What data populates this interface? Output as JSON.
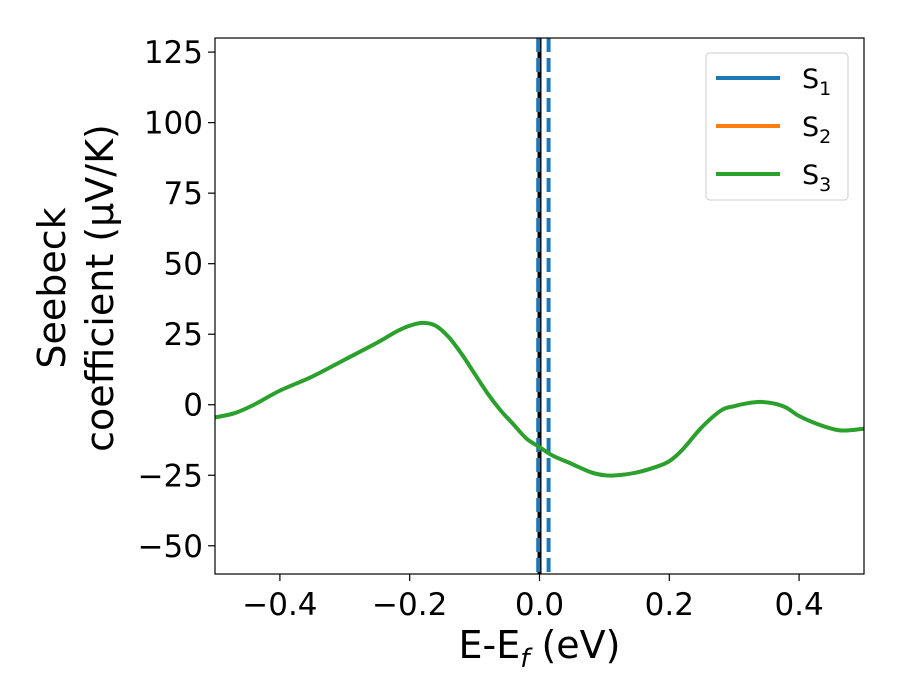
{
  "chart_data": {
    "type": "line",
    "xlabel": "E-E",
    "xlabel_sub": "f",
    "xlabel_unit": " (eV)",
    "ylabel_line1": "Seebeck",
    "ylabel_line2": "coefficient  (μV/K)",
    "xlim": [
      -0.5,
      0.5
    ],
    "ylim": [
      -60,
      130
    ],
    "xticks": [
      -0.4,
      -0.2,
      0.0,
      0.2,
      0.4
    ],
    "xtick_labels": [
      "−0.4",
      "−0.2",
      "0.0",
      "0.2",
      "0.4"
    ],
    "yticks": [
      -50,
      -25,
      0,
      25,
      50,
      75,
      100,
      125
    ],
    "ytick_labels": [
      "−50",
      "−25",
      "0",
      "25",
      "50",
      "75",
      "100",
      "125"
    ],
    "grid": false,
    "legend_position": "top-right",
    "legend": [
      {
        "label": "S",
        "sub": "1",
        "color": "#1f77b4"
      },
      {
        "label": "S",
        "sub": "2",
        "color": "#ff7f0e"
      },
      {
        "label": "S",
        "sub": "3",
        "color": "#2ca02c"
      }
    ],
    "series": [
      {
        "color": "#2ca02c",
        "x": [
          -0.5,
          -0.47,
          -0.44,
          -0.4,
          -0.35,
          -0.3,
          -0.25,
          -0.22,
          -0.2,
          -0.18,
          -0.16,
          -0.14,
          -0.12,
          -0.1,
          -0.08,
          -0.06,
          -0.04,
          -0.02,
          0.0,
          0.02,
          0.05,
          0.08,
          0.1,
          0.12,
          0.15,
          0.18,
          0.2,
          0.22,
          0.25,
          0.28,
          0.3,
          0.32,
          0.34,
          0.36,
          0.38,
          0.4,
          0.43,
          0.46,
          0.48,
          0.5
        ],
        "y": [
          -4.5,
          -3,
          0,
          5,
          10,
          16,
          22,
          26,
          28,
          29,
          28,
          24,
          18,
          11,
          4,
          -2,
          -7,
          -12,
          -15,
          -18,
          -21,
          -24,
          -25,
          -25,
          -24,
          -22,
          -20,
          -16,
          -8,
          -2,
          -0.5,
          0.5,
          1,
          0.5,
          -1,
          -4,
          -7,
          -9,
          -9,
          -8.5
        ]
      }
    ],
    "vlines": [
      {
        "x": 0.0,
        "color": "#000000",
        "style": "solid"
      },
      {
        "x": -0.002,
        "color": "#1f77b4",
        "style": "dashed"
      },
      {
        "x": 0.014,
        "color": "#1f77b4",
        "style": "dashed"
      }
    ]
  }
}
